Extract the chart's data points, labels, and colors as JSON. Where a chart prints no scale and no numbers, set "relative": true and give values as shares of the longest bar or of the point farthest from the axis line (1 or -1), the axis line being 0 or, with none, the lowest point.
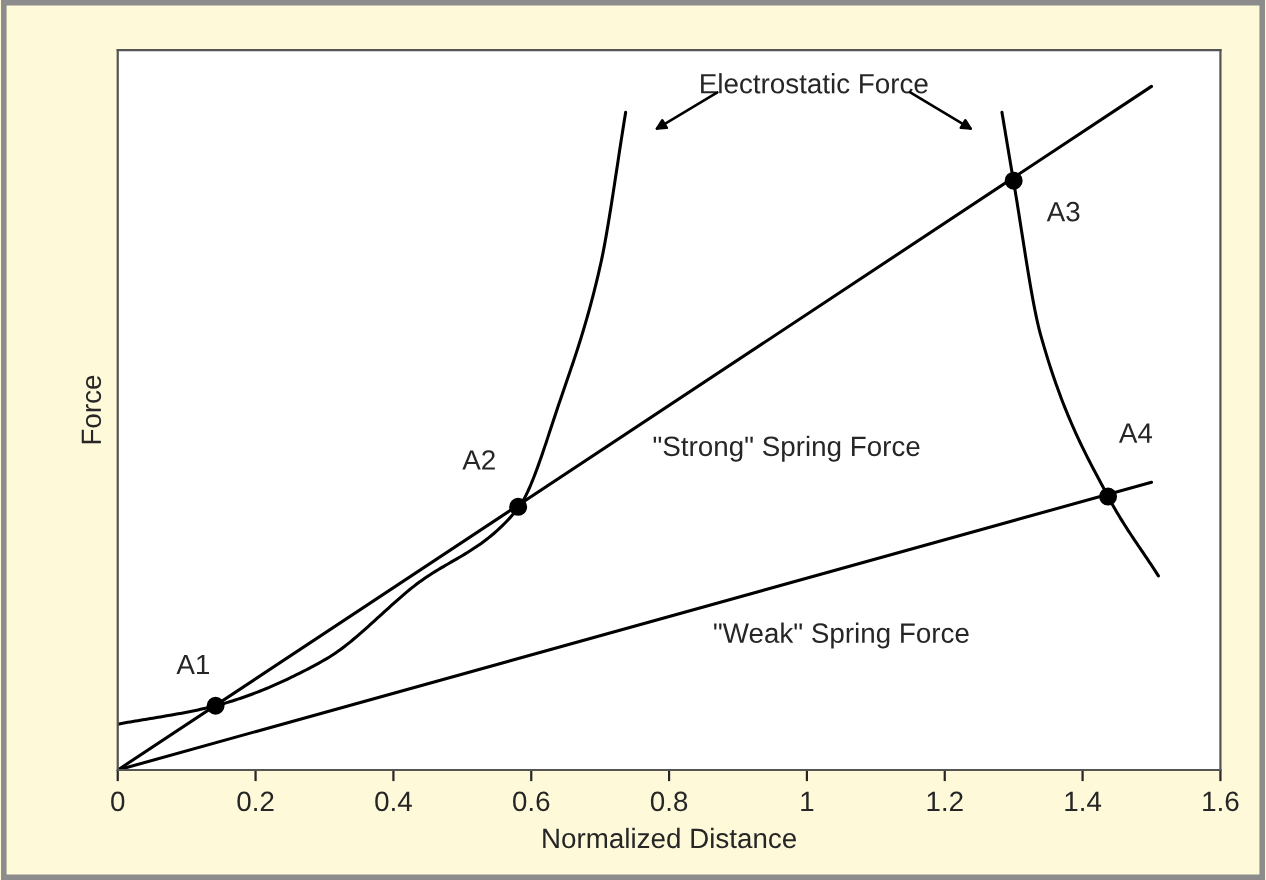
{
  "chart_data": {
    "type": "line",
    "xlabel": "Normalized Distance",
    "ylabel": "Force",
    "relative": true,
    "tick_labels": "x",
    "grid": false,
    "legend": false,
    "xlim": [
      0,
      1.6
    ],
    "xticks": [
      0,
      0.2,
      0.4,
      0.6,
      0.8,
      1,
      1.2,
      1.4,
      1.6
    ],
    "series": [
      {
        "name": "\"Strong\" Spring Force",
        "color": "#000000",
        "marker": "none",
        "x": [
          0,
          1.5
        ],
        "values": [
          0,
          1
        ]
      },
      {
        "name": "\"Weak\" Spring Force",
        "color": "#000000",
        "marker": "none",
        "x": [
          0,
          1.5
        ],
        "values": [
          0,
          0.421
        ]
      },
      {
        "name": "Electrostatic Force",
        "color": "#000000",
        "marker": "none",
        "x": [
          0,
          0.142,
          0.3,
          0.43,
          0.581,
          0.642,
          0.7,
          0.737,
          null,
          1.283,
          1.3,
          1.339,
          1.437,
          1.51
        ],
        "values": [
          0.067,
          0.094,
          0.161,
          0.269,
          0.383,
          0.541,
          0.737,
          0.962,
          null,
          0.962,
          0.86,
          0.637,
          0.4,
          0.284
        ]
      },
      {
        "type": "scatter",
        "color": "#000000",
        "marker": "circle",
        "x": [
          0.142,
          0.581,
          1.3,
          1.437
        ],
        "values": [
          0.094,
          0.385,
          0.862,
          0.4
        ]
      }
    ],
    "annotations": [
      {
        "text": "A1",
        "x": 0.142,
        "y": 0.094
      },
      {
        "text": "A2",
        "x": 0.581,
        "y": 0.385
      },
      {
        "text": "A3",
        "x": 1.3,
        "y": 0.862
      },
      {
        "text": "A4",
        "x": 1.437,
        "y": 0.4
      }
    ]
  }
}
